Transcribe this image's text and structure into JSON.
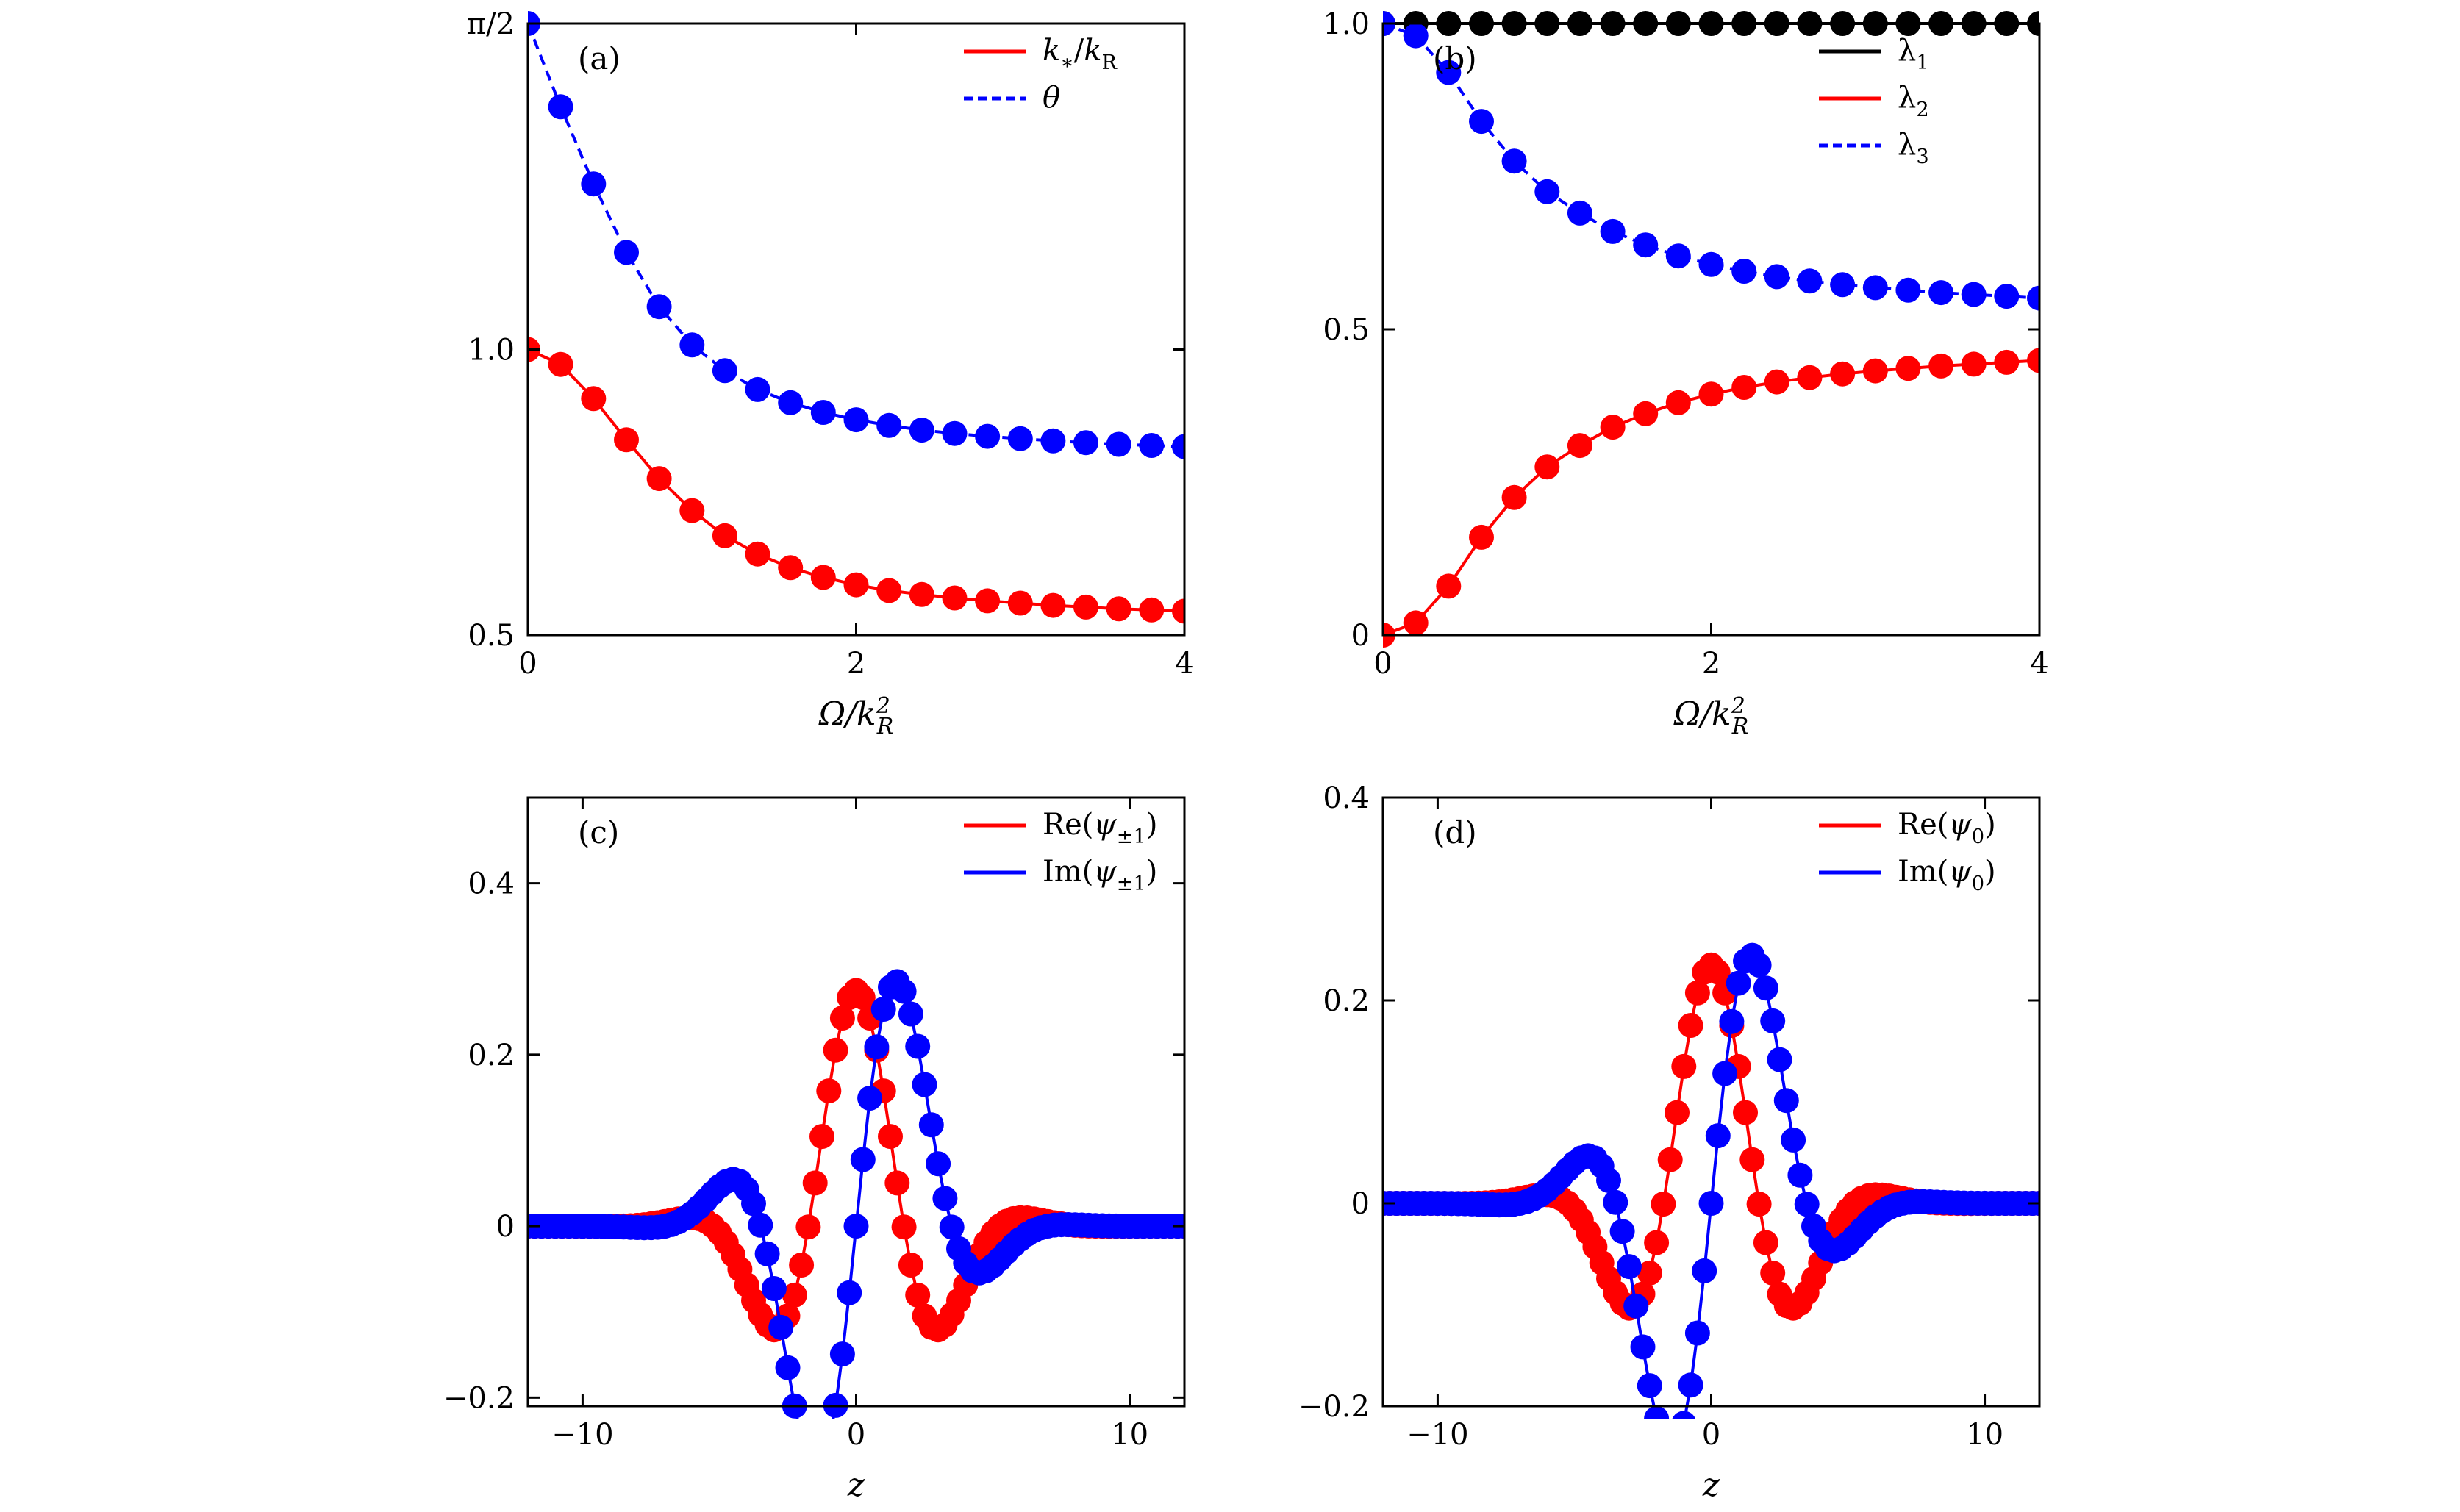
{
  "colors": {
    "red": "#ff0000",
    "blue": "#0000ff",
    "black": "#000000"
  },
  "chart_data": [
    {
      "id": "a",
      "type": "line",
      "panel_label": "(a)",
      "xlabel": "Ω/k_R²",
      "xlim": [
        0,
        4
      ],
      "ylim": [
        0.5,
        1.5708
      ],
      "xticks": [
        0,
        2,
        4
      ],
      "xtick_labels": [
        "0",
        "2",
        "4"
      ],
      "yticks": [
        0.5,
        1.0,
        1.5708
      ],
      "ytick_labels": [
        "0.5",
        "1.0",
        "π/2"
      ],
      "legend_position": "top-right",
      "series": [
        {
          "name": "k*/kR",
          "color": "#ff0000",
          "dash": false,
          "x": [
            0,
            0.2,
            0.4,
            0.6,
            0.8,
            1.0,
            1.2,
            1.4,
            1.6,
            1.8,
            2.0,
            2.2,
            2.4,
            2.6,
            2.8,
            3.0,
            3.2,
            3.4,
            3.6,
            3.8,
            4.0
          ],
          "y": [
            1.0,
            0.974,
            0.914,
            0.842,
            0.774,
            0.718,
            0.674,
            0.642,
            0.618,
            0.601,
            0.588,
            0.578,
            0.571,
            0.565,
            0.56,
            0.556,
            0.552,
            0.549,
            0.546,
            0.544,
            0.542
          ]
        },
        {
          "name": "θ",
          "color": "#0000ff",
          "dash": true,
          "x": [
            0,
            0.2,
            0.4,
            0.6,
            0.8,
            1.0,
            1.2,
            1.4,
            1.6,
            1.8,
            2.0,
            2.2,
            2.4,
            2.6,
            2.8,
            3.0,
            3.2,
            3.4,
            3.6,
            3.8,
            4.0
          ],
          "y": [
            1.5708,
            1.425,
            1.29,
            1.17,
            1.075,
            1.008,
            0.963,
            0.93,
            0.907,
            0.89,
            0.877,
            0.867,
            0.859,
            0.853,
            0.848,
            0.844,
            0.84,
            0.837,
            0.834,
            0.832,
            0.83
          ]
        }
      ]
    },
    {
      "id": "b",
      "type": "line",
      "panel_label": "(b)",
      "xlabel": "Ω/k_R²",
      "xlim": [
        0,
        4
      ],
      "ylim": [
        0,
        1.0
      ],
      "xticks": [
        0,
        2,
        4
      ],
      "xtick_labels": [
        "0",
        "2",
        "4"
      ],
      "yticks": [
        0,
        0.5,
        1.0
      ],
      "ytick_labels": [
        "0",
        "0.5",
        "1.0"
      ],
      "legend_position": "top-right",
      "series": [
        {
          "name": "λ1",
          "color": "#000000",
          "dash": false,
          "x": [
            0,
            0.2,
            0.4,
            0.6,
            0.8,
            1.0,
            1.2,
            1.4,
            1.6,
            1.8,
            2.0,
            2.2,
            2.4,
            2.6,
            2.8,
            3.0,
            3.2,
            3.4,
            3.6,
            3.8,
            4.0
          ],
          "y": [
            1,
            1,
            1,
            1,
            1,
            1,
            1,
            1,
            1,
            1,
            1,
            1,
            1,
            1,
            1,
            1,
            1,
            1,
            1,
            1,
            1
          ]
        },
        {
          "name": "λ2",
          "color": "#ff0000",
          "dash": false,
          "x": [
            0,
            0.2,
            0.4,
            0.6,
            0.8,
            1.0,
            1.2,
            1.4,
            1.6,
            1.8,
            2.0,
            2.2,
            2.4,
            2.6,
            2.8,
            3.0,
            3.2,
            3.4,
            3.6,
            3.8,
            4.0
          ],
          "y": [
            0.0,
            0.02,
            0.08,
            0.16,
            0.225,
            0.275,
            0.31,
            0.34,
            0.362,
            0.38,
            0.394,
            0.405,
            0.414,
            0.421,
            0.427,
            0.432,
            0.436,
            0.44,
            0.443,
            0.446,
            0.449
          ]
        },
        {
          "name": "λ3",
          "color": "#0000ff",
          "dash": true,
          "x": [
            0,
            0.2,
            0.4,
            0.6,
            0.8,
            1.0,
            1.2,
            1.4,
            1.6,
            1.8,
            2.0,
            2.2,
            2.4,
            2.6,
            2.8,
            3.0,
            3.2,
            3.4,
            3.6,
            3.8,
            4.0
          ],
          "y": [
            1.0,
            0.98,
            0.92,
            0.84,
            0.775,
            0.725,
            0.69,
            0.66,
            0.638,
            0.62,
            0.606,
            0.595,
            0.586,
            0.579,
            0.573,
            0.568,
            0.564,
            0.56,
            0.557,
            0.554,
            0.551
          ]
        }
      ]
    },
    {
      "id": "c",
      "type": "line",
      "panel_label": "(c)",
      "xlabel": "z",
      "xlim": [
        -12,
        12
      ],
      "ylim": [
        -0.21,
        0.5
      ],
      "xticks": [
        -10,
        0,
        10
      ],
      "xtick_labels": [
        "−10",
        "0",
        "10"
      ],
      "yticks": [
        -0.2,
        0,
        0.2,
        0.4
      ],
      "ytick_labels": [
        "−0.2",
        "0",
        "0.2",
        "0.4"
      ],
      "legend_position": "top-right",
      "wavefunction": {
        "re": {
          "amplitude": 0.275,
          "width": 2.5,
          "k": 0.9
        },
        "im": {
          "amplitude": 0.35,
          "width": 2.5,
          "k": 0.9
        },
        "z_min": -12,
        "z_max": 12,
        "points": 97
      },
      "series": [
        {
          "name": "Re(ψ±1)",
          "color": "#ff0000",
          "dash": false
        },
        {
          "name": "Im(ψ±1)",
          "color": "#0000ff",
          "dash": false
        }
      ]
    },
    {
      "id": "d",
      "type": "line",
      "panel_label": "(d)",
      "xlabel": "z",
      "xlim": [
        -12,
        12
      ],
      "ylim": [
        -0.2,
        0.4
      ],
      "xticks": [
        -10,
        0,
        10
      ],
      "xtick_labels": [
        "−10",
        "0",
        "10"
      ],
      "yticks": [
        -0.2,
        0,
        0.2,
        0.4
      ],
      "ytick_labels": [
        "−0.2",
        "0",
        "0.2",
        "0.4"
      ],
      "legend_position": "top-right",
      "wavefunction": {
        "re": {
          "amplitude": 0.235,
          "width": 2.5,
          "k": 0.9
        },
        "im": {
          "amplitude": 0.3,
          "width": 2.5,
          "k": 0.9
        },
        "z_min": -12,
        "z_max": 12,
        "points": 97
      },
      "series": [
        {
          "name": "Re(ψ0)",
          "color": "#ff0000",
          "dash": false
        },
        {
          "name": "Im(ψ0)",
          "color": "#0000ff",
          "dash": false
        }
      ]
    }
  ]
}
